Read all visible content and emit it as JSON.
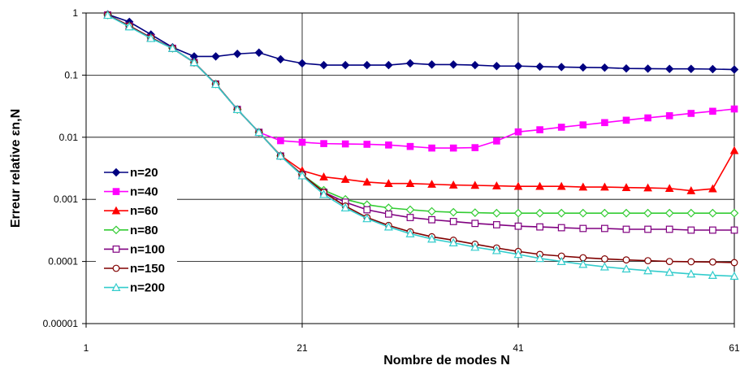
{
  "chart_data": {
    "type": "line",
    "title": "",
    "xlabel": "Nombre de modes N",
    "ylabel": "Erreur relative εn,N",
    "xlim": [
      1,
      61
    ],
    "ylim": [
      1e-05,
      1
    ],
    "y_scale": "log",
    "grid": true,
    "legend_position": "left-middle",
    "x_ticks": [
      "1",
      "21",
      "41",
      "61"
    ],
    "y_ticks": [
      "1",
      "0.1",
      "0.01",
      "0.001",
      "0.0001",
      "0.00001"
    ],
    "x": [
      3,
      5,
      7,
      9,
      11,
      13,
      15,
      17,
      19,
      21,
      23,
      25,
      27,
      29,
      31,
      33,
      35,
      37,
      39,
      41,
      43,
      45,
      47,
      49,
      51,
      53,
      55,
      57,
      59,
      61
    ],
    "series": [
      {
        "name": "n=20",
        "color": "#000080",
        "marker": "diamond-filled",
        "values": [
          0.95,
          0.72,
          0.45,
          0.28,
          0.2,
          0.2,
          0.22,
          0.23,
          0.18,
          0.155,
          0.145,
          0.145,
          0.145,
          0.145,
          0.155,
          0.148,
          0.148,
          0.145,
          0.14,
          0.14,
          0.137,
          0.135,
          0.133,
          0.132,
          0.128,
          0.127,
          0.126,
          0.126,
          0.125,
          0.123
        ]
      },
      {
        "name": "n=40",
        "color": "#ff00ff",
        "marker": "square-filled",
        "values": [
          0.93,
          0.62,
          0.4,
          0.27,
          0.16,
          0.072,
          0.028,
          0.012,
          0.0088,
          0.0083,
          0.0079,
          0.0078,
          0.0077,
          0.0075,
          0.0071,
          0.0067,
          0.0067,
          0.0068,
          0.0087,
          0.0122,
          0.0132,
          0.0145,
          0.0158,
          0.0172,
          0.0188,
          0.0205,
          0.0222,
          0.0242,
          0.0262,
          0.0285
        ]
      },
      {
        "name": "n=60",
        "color": "#ff0000",
        "marker": "triangle-filled",
        "values": [
          0.93,
          0.62,
          0.4,
          0.27,
          0.16,
          0.072,
          0.028,
          0.012,
          0.0051,
          0.0029,
          0.0023,
          0.0021,
          0.0019,
          0.0018,
          0.0018,
          0.00175,
          0.0017,
          0.00168,
          0.00165,
          0.00162,
          0.00162,
          0.00162,
          0.00158,
          0.00158,
          0.00155,
          0.00153,
          0.0015,
          0.00138,
          0.00148,
          0.0061
        ]
      },
      {
        "name": "n=80",
        "color": "#33cc33",
        "marker": "diamond-open",
        "values": [
          0.93,
          0.62,
          0.4,
          0.27,
          0.16,
          0.072,
          0.028,
          0.012,
          0.005,
          0.0025,
          0.0014,
          0.001,
          0.00082,
          0.00073,
          0.00068,
          0.00064,
          0.00062,
          0.00061,
          0.0006,
          0.0006,
          0.0006,
          0.0006,
          0.0006,
          0.0006,
          0.0006,
          0.0006,
          0.0006,
          0.0006,
          0.0006,
          0.0006
        ]
      },
      {
        "name": "n=100",
        "color": "#800080",
        "marker": "square-open",
        "values": [
          0.93,
          0.62,
          0.4,
          0.27,
          0.16,
          0.072,
          0.028,
          0.012,
          0.005,
          0.0025,
          0.0013,
          0.0009,
          0.00068,
          0.00058,
          0.00051,
          0.00047,
          0.00044,
          0.00041,
          0.00039,
          0.00037,
          0.00036,
          0.00035,
          0.00034,
          0.00034,
          0.00033,
          0.00033,
          0.00033,
          0.00032,
          0.00032,
          0.00032
        ]
      },
      {
        "name": "n=150",
        "color": "#800000",
        "marker": "circle-open",
        "values": [
          0.93,
          0.62,
          0.4,
          0.27,
          0.16,
          0.072,
          0.028,
          0.012,
          0.005,
          0.0025,
          0.0013,
          0.00078,
          0.00051,
          0.00038,
          0.0003,
          0.00025,
          0.00022,
          0.00019,
          0.000165,
          0.000145,
          0.00013,
          0.000122,
          0.000115,
          0.00011,
          0.000106,
          0.000103,
          0.0001,
          9.9e-05,
          9.8e-05,
          9.6e-05
        ]
      },
      {
        "name": "n=200",
        "color": "#33cccc",
        "marker": "triangle-open",
        "values": [
          0.92,
          0.6,
          0.39,
          0.27,
          0.16,
          0.071,
          0.028,
          0.012,
          0.005,
          0.0024,
          0.0012,
          0.00073,
          0.00049,
          0.00036,
          0.00028,
          0.00023,
          0.0002,
          0.00017,
          0.00015,
          0.00013,
          0.000112,
          0.0001,
          9e-05,
          8.2e-05,
          7.6e-05,
          7.1e-05,
          6.7e-05,
          6.3e-05,
          6e-05,
          5.8e-05
        ]
      }
    ]
  }
}
